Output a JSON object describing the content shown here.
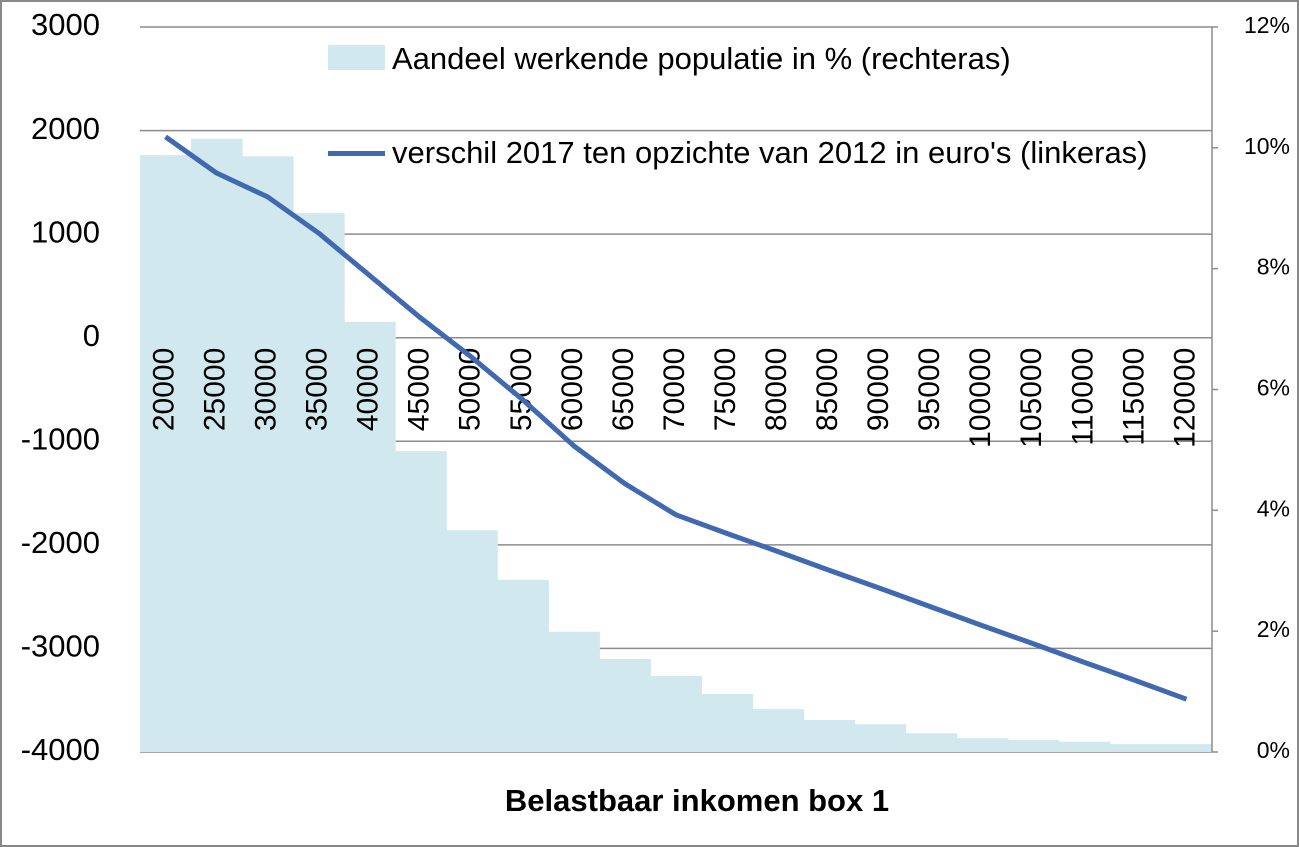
{
  "chart_data": {
    "type": "combo",
    "x_label": "Belastbaar inkomen box 1",
    "categories": [
      "20000",
      "25000",
      "30000",
      "35000",
      "40000",
      "45000",
      "50000",
      "55000",
      "60000",
      "65000",
      "70000",
      "75000",
      "80000",
      "85000",
      "90000",
      "95000",
      "100000",
      "105000",
      "110000",
      "115000",
      "120000"
    ],
    "series": [
      {
        "name": "Aandeel werkende populatie in % (rechteras)",
        "type": "bar",
        "axis": "y2",
        "color": "#d2e8ef",
        "values": [
          9.88,
          10.15,
          9.86,
          8.92,
          7.12,
          4.98,
          3.67,
          2.85,
          1.99,
          1.54,
          1.26,
          0.96,
          0.71,
          0.53,
          0.46,
          0.31,
          0.23,
          0.2,
          0.17,
          0.13,
          0.13
        ]
      },
      {
        "name": "verschil 2017 ten opzichte van 2012 in euro's (linkeras)",
        "type": "line",
        "color": "#4169b0",
        "values": [
          1940,
          1590,
          1360,
          1010,
          600,
          190,
          -190,
          -600,
          -1045,
          -1410,
          -1710,
          -1890,
          -2065,
          -2245,
          -2420,
          -2600,
          -2780,
          -2955,
          -3135,
          -3310,
          -3490
        ]
      }
    ],
    "ylim": [
      -4000,
      3000
    ],
    "yticks": [
      -4000,
      -3000,
      -2000,
      -1000,
      0,
      1000,
      2000,
      3000
    ],
    "y2lim": [
      0,
      12
    ],
    "y2ticks": [
      {
        "value": 0,
        "label": "0%"
      },
      {
        "value": 2,
        "label": "2%"
      },
      {
        "value": 4,
        "label": "4%"
      },
      {
        "value": 6,
        "label": "6%"
      },
      {
        "value": 8,
        "label": "8%"
      },
      {
        "value": 10,
        "label": "10%"
      },
      {
        "value": 12,
        "label": "12%"
      }
    ],
    "grid": true
  }
}
